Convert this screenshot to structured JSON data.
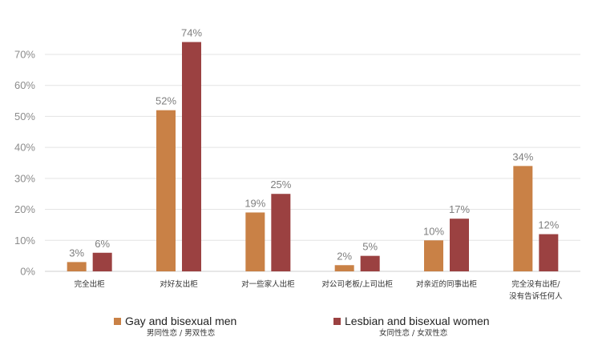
{
  "chart_data": {
    "type": "bar",
    "categories": [
      [
        "完全出柜"
      ],
      [
        "对好友出柜"
      ],
      [
        "对一些家人出柜"
      ],
      [
        "对公司老板/上司出柜"
      ],
      [
        "对亲近的同事出柜"
      ],
      [
        "完全没有出柜/",
        "没有告诉任何人"
      ]
    ],
    "series": [
      {
        "name": "Gay and bisexual men",
        "name_zh": "男同性恋 / 男双性恋",
        "color": "#c98146",
        "values": [
          3,
          52,
          19,
          2,
          10,
          34
        ]
      },
      {
        "name": "Lesbian and bisexual women",
        "name_zh": "女同性恋 / 女双性恋",
        "color": "#9b4141",
        "values": [
          6,
          74,
          25,
          5,
          17,
          12
        ]
      }
    ],
    "yticks": [
      "0%",
      "10%",
      "20%",
      "30%",
      "40%",
      "50%",
      "60%",
      "70%"
    ],
    "ylim": [
      0,
      70
    ],
    "value_suffix": "%",
    "grid": true,
    "legend_position": "bottom"
  }
}
